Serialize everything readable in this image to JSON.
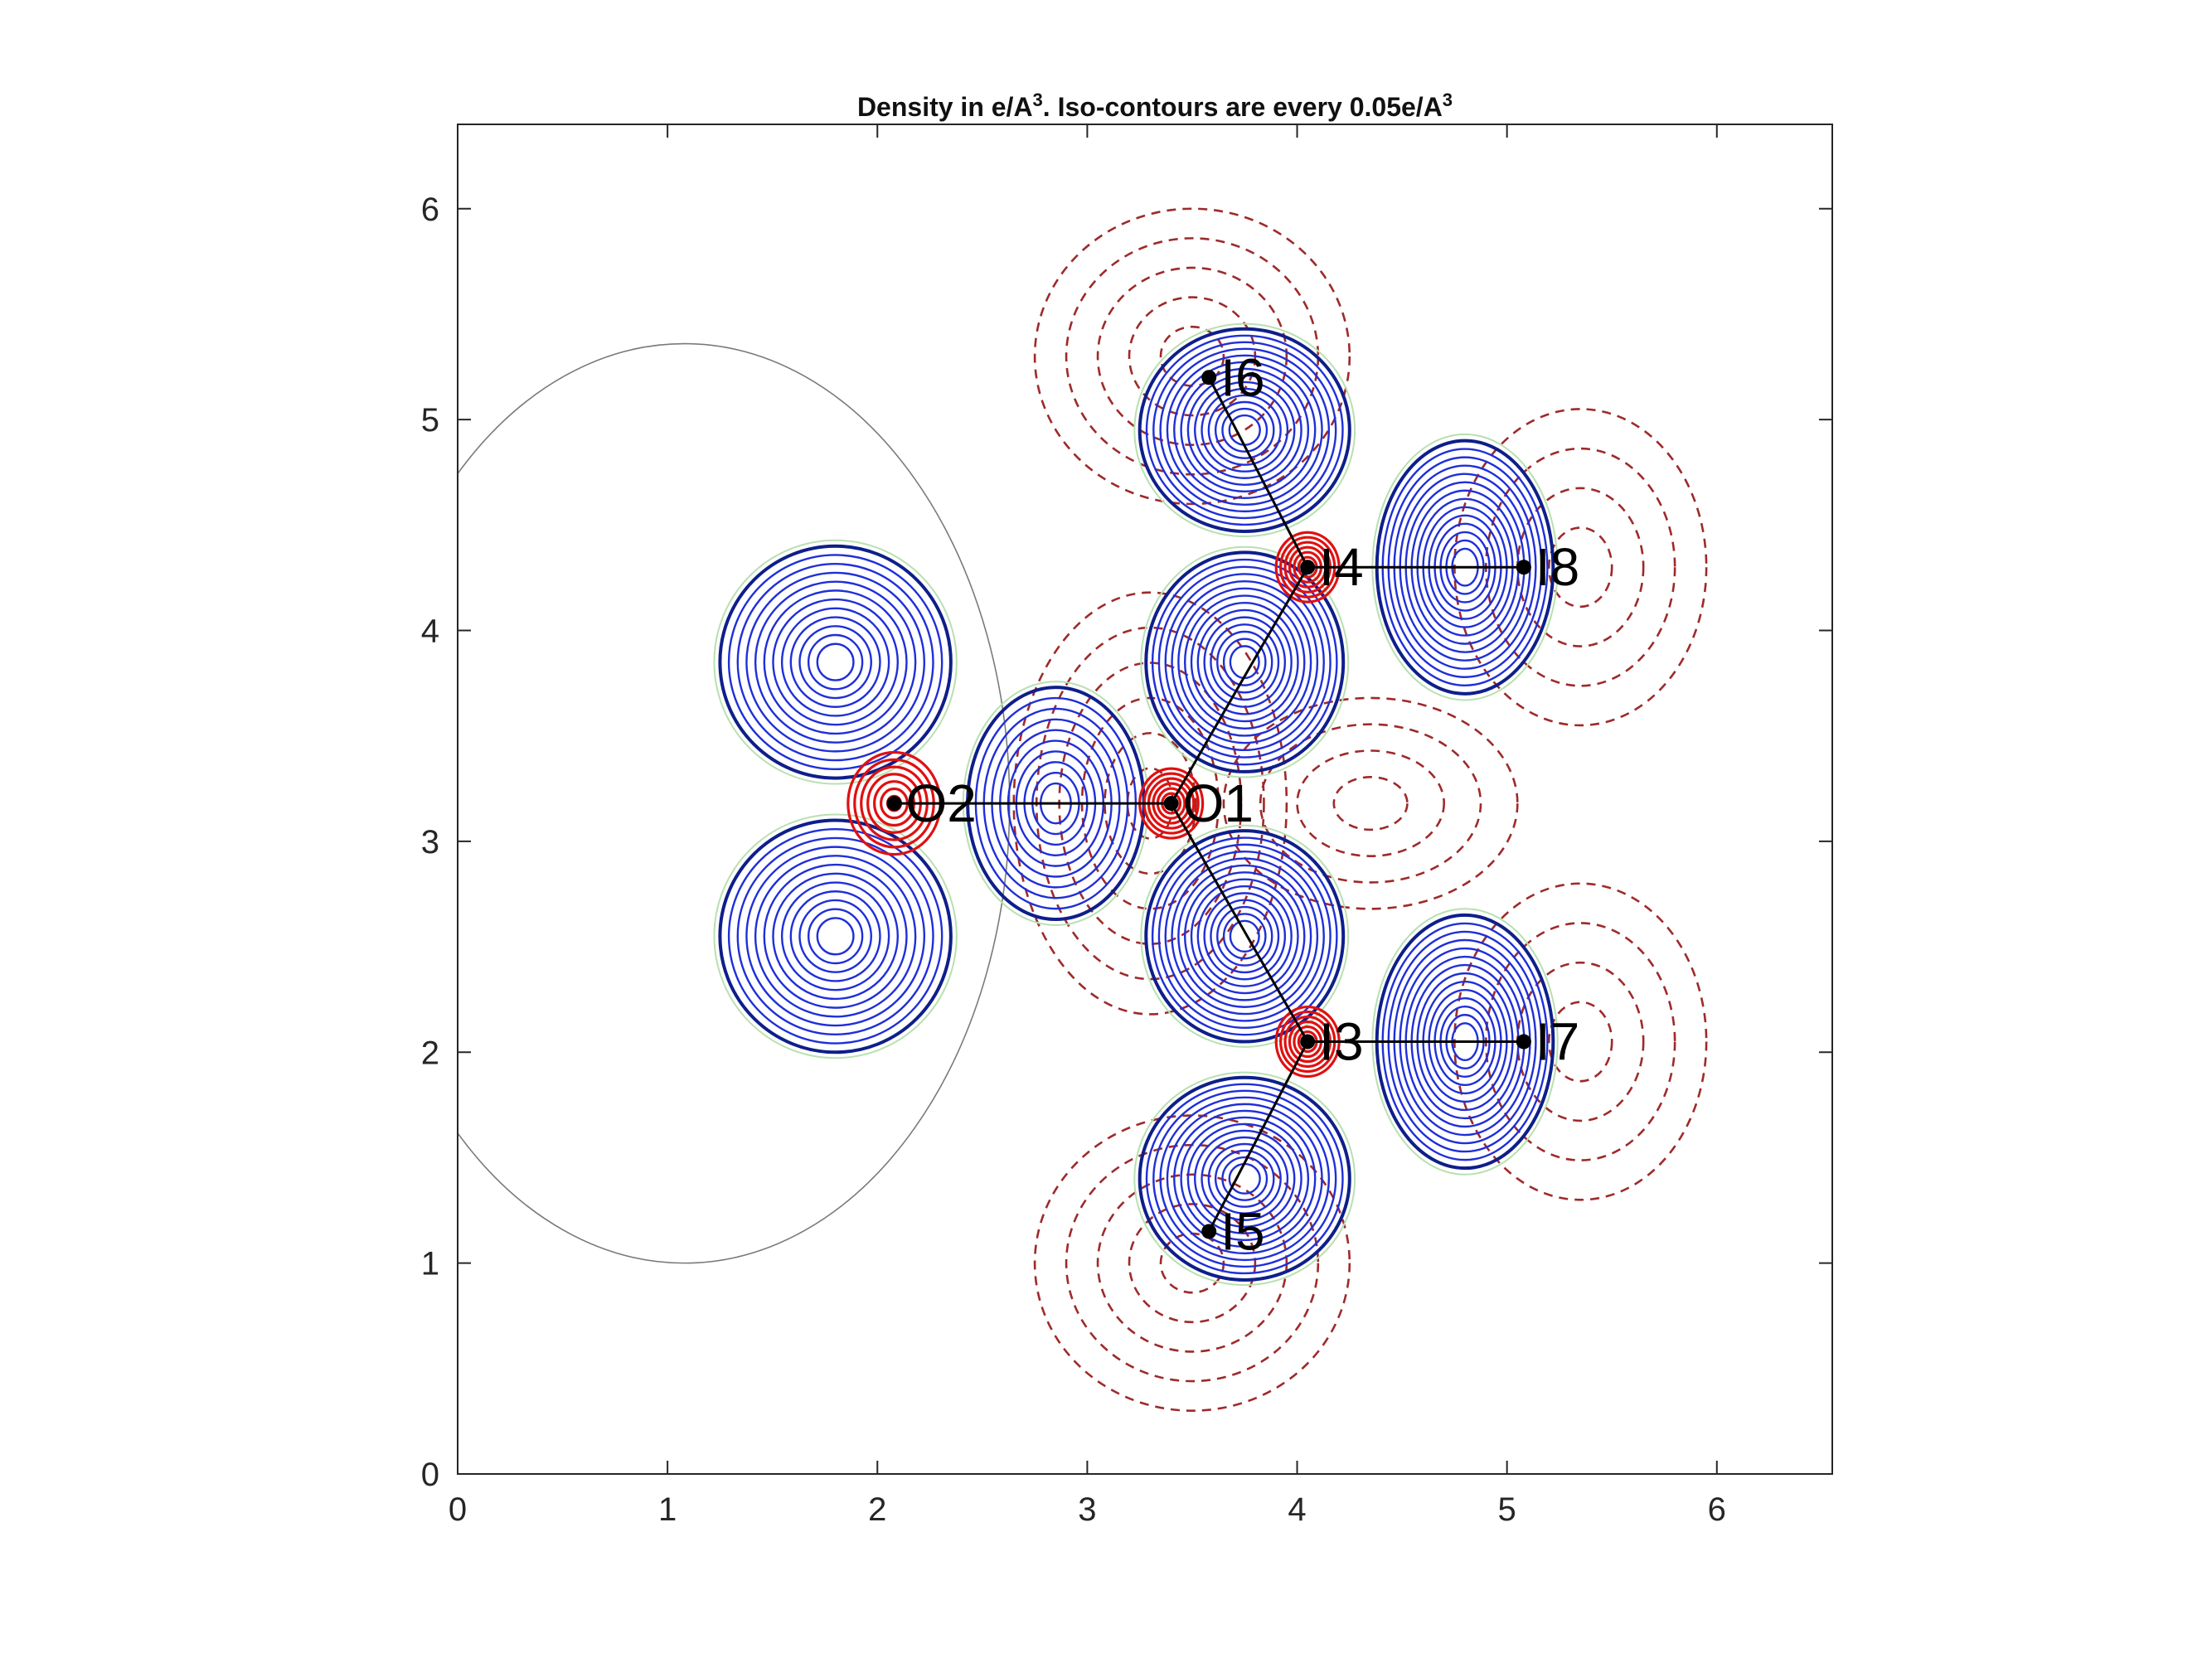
{
  "chart_data": {
    "type": "contour",
    "title": "Density in e/A",
    "title_sup1": "3",
    "title_mid": ". Iso-contours are every 0.05e/A",
    "title_sup2": "3",
    "xlim": [
      0,
      6.55
    ],
    "ylim": [
      0,
      6.4
    ],
    "xticks": [
      0,
      1,
      2,
      3,
      4,
      5,
      6
    ],
    "yticks": [
      0,
      1,
      2,
      3,
      4,
      5,
      6
    ],
    "grid": false,
    "colors": {
      "positive": "#1f2fd8",
      "positive_outer": "#0e1f8a",
      "negative": "#9e2a2a",
      "core": "#e01010",
      "zero": "#7a7a7a",
      "bond": "#000000"
    },
    "atoms": [
      {
        "label": "O2",
        "x": 2.08,
        "y": 3.18,
        "kind": "core"
      },
      {
        "label": "O1",
        "x": 3.4,
        "y": 3.18,
        "kind": "core"
      },
      {
        "label": "I4",
        "x": 4.05,
        "y": 4.3,
        "kind": "core"
      },
      {
        "label": "I3",
        "x": 4.05,
        "y": 2.05,
        "kind": "core"
      },
      {
        "label": "I6",
        "x": 3.58,
        "y": 5.2,
        "kind": "terminal"
      },
      {
        "label": "I8",
        "x": 5.08,
        "y": 4.3,
        "kind": "terminal"
      },
      {
        "label": "I7",
        "x": 5.08,
        "y": 2.05,
        "kind": "terminal"
      },
      {
        "label": "I5",
        "x": 3.58,
        "y": 1.15,
        "kind": "terminal"
      }
    ],
    "bonds": [
      [
        "O2",
        "O1"
      ],
      [
        "O1",
        "I4"
      ],
      [
        "O1",
        "I3"
      ],
      [
        "I4",
        "I6"
      ],
      [
        "I4",
        "I8"
      ],
      [
        "I3",
        "I5"
      ],
      [
        "I3",
        "I7"
      ]
    ],
    "positive_lobes": [
      {
        "cx": 1.8,
        "cy": 3.85,
        "rx": 0.55,
        "ry": 0.55,
        "levels": 12
      },
      {
        "cx": 1.8,
        "cy": 2.55,
        "rx": 0.55,
        "ry": 0.55,
        "levels": 12
      },
      {
        "cx": 2.85,
        "cy": 3.18,
        "rx": 0.42,
        "ry": 0.55,
        "levels": 10
      },
      {
        "cx": 3.75,
        "cy": 4.95,
        "rx": 0.5,
        "ry": 0.48,
        "levels": 14
      },
      {
        "cx": 3.75,
        "cy": 3.85,
        "rx": 0.47,
        "ry": 0.52,
        "levels": 14
      },
      {
        "cx": 4.8,
        "cy": 4.3,
        "rx": 0.42,
        "ry": 0.6,
        "levels": 14
      },
      {
        "cx": 3.75,
        "cy": 2.55,
        "rx": 0.47,
        "ry": 0.5,
        "levels": 14
      },
      {
        "cx": 3.75,
        "cy": 1.4,
        "rx": 0.5,
        "ry": 0.48,
        "levels": 14
      },
      {
        "cx": 4.8,
        "cy": 2.05,
        "rx": 0.42,
        "ry": 0.6,
        "levels": 14
      }
    ],
    "negative_regions": [
      {
        "cx": 3.5,
        "cy": 5.3,
        "rx": 0.75,
        "ry": 0.7,
        "levels": 5
      },
      {
        "cx": 5.35,
        "cy": 4.3,
        "rx": 0.6,
        "ry": 0.75,
        "levels": 4
      },
      {
        "cx": 5.35,
        "cy": 2.05,
        "rx": 0.6,
        "ry": 0.75,
        "levels": 4
      },
      {
        "cx": 3.5,
        "cy": 1.0,
        "rx": 0.75,
        "ry": 0.7,
        "levels": 5
      },
      {
        "cx": 3.3,
        "cy": 3.18,
        "rx": 0.65,
        "ry": 1.0,
        "levels": 6
      },
      {
        "cx": 4.35,
        "cy": 3.18,
        "rx": 0.7,
        "ry": 0.5,
        "levels": 4
      }
    ],
    "zero_contour": {
      "cx": 1.08,
      "cy": 3.18,
      "rx": 1.55,
      "ry": 2.18
    }
  }
}
